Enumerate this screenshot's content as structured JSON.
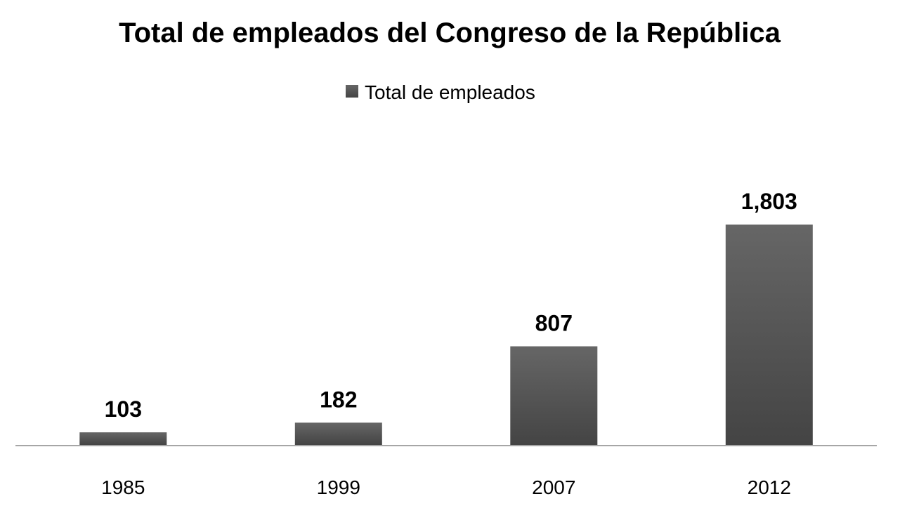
{
  "chart_data": {
    "type": "bar",
    "title": "Total de empleados del Congreso de la República",
    "categories": [
      "1985",
      "1999",
      "2007",
      "2012"
    ],
    "series": [
      {
        "name": "Total de empleados",
        "values": [
          103,
          182,
          807,
          1803
        ],
        "labels": [
          "103",
          "182",
          "807",
          "1,803"
        ]
      }
    ],
    "legend_position": "top-center",
    "grid": false,
    "y_axis_visible": false,
    "colors": {
      "bar_top": "#666666",
      "bar_bottom": "#444444",
      "axis": "#a6a6a6"
    }
  }
}
